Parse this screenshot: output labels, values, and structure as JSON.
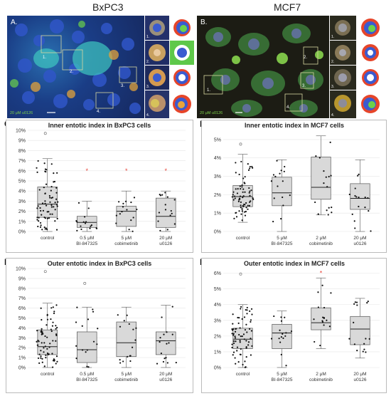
{
  "figure": {
    "titles": {
      "left": "BxPC3",
      "right": "MCF7"
    },
    "micrograph_labels": {
      "left_main": "A.",
      "left_legend_red": "",
      "left_legend_green": "20 μM u0126",
      "right_main": "B.",
      "right_legend_red": "",
      "right_legend_green": "20 μM u0126"
    },
    "inset_numbers": [
      "1.",
      "2.",
      "3.",
      "4."
    ],
    "panel_letters": [
      "C.",
      "D.",
      "E.",
      "F."
    ]
  },
  "chart_data": [
    {
      "id": "C",
      "type": "box",
      "title": "Inner entotic index in BxPC3 cells",
      "categories": [
        "control",
        "0.5 μM BI-847325",
        "5 μM cobimetinib",
        "20 μM u0126"
      ],
      "category_lines": [
        [
          "control"
        ],
        [
          "0.5 μM",
          "BI-847325"
        ],
        [
          "5 μM",
          "cobimetinib"
        ],
        [
          "20 μM",
          "u0126"
        ]
      ],
      "yticks": [
        "0%",
        "1%",
        "2%",
        "3%",
        "4%",
        "5%",
        "6%",
        "7%",
        "8%",
        "9%",
        "10%"
      ],
      "ylim": [
        0,
        10
      ],
      "grid": true,
      "boxes": [
        {
          "q1": 1.4,
          "median": 2.7,
          "q3": 4.4,
          "whisker_low": 0.0,
          "whisker_high": 7.2
        },
        {
          "q1": 0.4,
          "median": 0.9,
          "q3": 1.5,
          "whisker_low": 0.0,
          "whisker_high": 3.0
        },
        {
          "q1": 0.5,
          "median": 2.0,
          "q3": 2.5,
          "whisker_low": 0.0,
          "whisker_high": 4.0
        },
        {
          "q1": 0.4,
          "median": 1.5,
          "q3": 3.3,
          "whisker_low": 0.0,
          "whisker_high": 4.0
        }
      ],
      "outliers": [
        [
          9.7
        ],
        [
          6.0
        ],
        [
          6.0
        ],
        [
          6.0
        ]
      ],
      "star_outlier_categories": [
        1,
        2,
        3
      ]
    },
    {
      "id": "D",
      "type": "box",
      "title": "Inner entotic index in MCF7 cells",
      "categories": [
        "control",
        "5 μM BI-847325",
        "2 μM cobimetinib",
        "20 μM u0126"
      ],
      "category_lines": [
        [
          "control"
        ],
        [
          "5 μM",
          "BI-847325"
        ],
        [
          "2 μM",
          "cobimetinib"
        ],
        [
          "20 μM",
          "u0126"
        ]
      ],
      "yticks": [
        "0%",
        "1%",
        "2%",
        "3%",
        "4%",
        "5%"
      ],
      "ylim": [
        0,
        5.5
      ],
      "grid": true,
      "boxes": [
        {
          "q1": 1.35,
          "median": 1.9,
          "q3": 2.5,
          "whisker_low": 0.5,
          "whisker_high": 4.2
        },
        {
          "q1": 1.4,
          "median": 2.1,
          "q3": 2.95,
          "whisker_low": 0.0,
          "whisker_high": 3.9
        },
        {
          "q1": 1.75,
          "median": 2.4,
          "q3": 4.05,
          "whisker_low": 0.9,
          "whisker_high": 5.2
        },
        {
          "q1": 1.2,
          "median": 1.8,
          "q3": 2.6,
          "whisker_low": 0.0,
          "whisker_high": 3.9
        }
      ],
      "outliers": [
        [
          4.75
        ],
        [],
        [],
        []
      ],
      "star_outlier_categories": []
    },
    {
      "id": "E",
      "type": "box",
      "title": "Outer entotic index in BxPC3 cells",
      "categories": [
        "control",
        "0.5 μM BI-847325",
        "5 μM cobimetinib",
        "20 μM u0126"
      ],
      "category_lines": [
        [
          "control"
        ],
        [
          "0.5 μM",
          "BI-847325"
        ],
        [
          "5 μM",
          "cobimetinib"
        ],
        [
          "20 μM",
          "u0126"
        ]
      ],
      "yticks": [
        "0%",
        "1%",
        "2%",
        "3%",
        "4%",
        "5%",
        "6%",
        "7%",
        "8%",
        "9%",
        "10%"
      ],
      "ylim": [
        0,
        10
      ],
      "grid": true,
      "boxes": [
        {
          "q1": 1.3,
          "median": 2.1,
          "q3": 3.8,
          "whisker_low": 0.0,
          "whisker_high": 6.5
        },
        {
          "q1": 0.5,
          "median": 1.8,
          "q3": 3.6,
          "whisker_low": 0.0,
          "whisker_high": 6.1
        },
        {
          "q1": 1.1,
          "median": 2.5,
          "q3": 4.6,
          "whisker_low": 0.0,
          "whisker_high": 6.1
        },
        {
          "q1": 1.3,
          "median": 2.7,
          "q3": 3.6,
          "whisker_low": 0.0,
          "whisker_high": 6.3
        }
      ],
      "outliers": [
        [
          9.7
        ],
        [
          8.5
        ],
        [],
        []
      ],
      "star_outlier_categories": []
    },
    {
      "id": "F",
      "type": "box",
      "title": "Outer entotic index in MCF7 cells",
      "categories": [
        "control",
        "5 μM BI-847325",
        "2 μM cobimetinib",
        "20 μM u0126"
      ],
      "category_lines": [
        [
          "control"
        ],
        [
          "5 μM",
          "BI-847325"
        ],
        [
          "2 μM",
          "cobimetinib"
        ],
        [
          "20 μM",
          "u0126"
        ]
      ],
      "yticks": [
        "0%",
        "1%",
        "2%",
        "3%",
        "4%",
        "5%",
        "6%"
      ],
      "ylim": [
        0,
        6.3
      ],
      "grid": true,
      "boxes": [
        {
          "q1": 1.2,
          "median": 1.8,
          "q3": 2.5,
          "whisker_low": 0.0,
          "whisker_high": 4.0
        },
        {
          "q1": 1.2,
          "median": 2.2,
          "q3": 2.75,
          "whisker_low": 0.0,
          "whisker_high": 3.6
        },
        {
          "q1": 2.4,
          "median": 2.85,
          "q3": 3.8,
          "whisker_low": 1.2,
          "whisker_high": 5.7
        },
        {
          "q1": 1.45,
          "median": 2.45,
          "q3": 3.25,
          "whisker_low": 0.6,
          "whisker_high": 4.4
        }
      ],
      "outliers": [
        [
          5.95
        ],
        [],
        [
          6.0
        ],
        []
      ],
      "star_outlier_categories": [
        2
      ]
    }
  ],
  "colors": {
    "box_fill": "#d9d9d9",
    "box_stroke": "#555555",
    "point": "#111111",
    "star": "#e8463c",
    "grid": "#e6e6e6",
    "micro_bg": "#1b2a5a"
  }
}
